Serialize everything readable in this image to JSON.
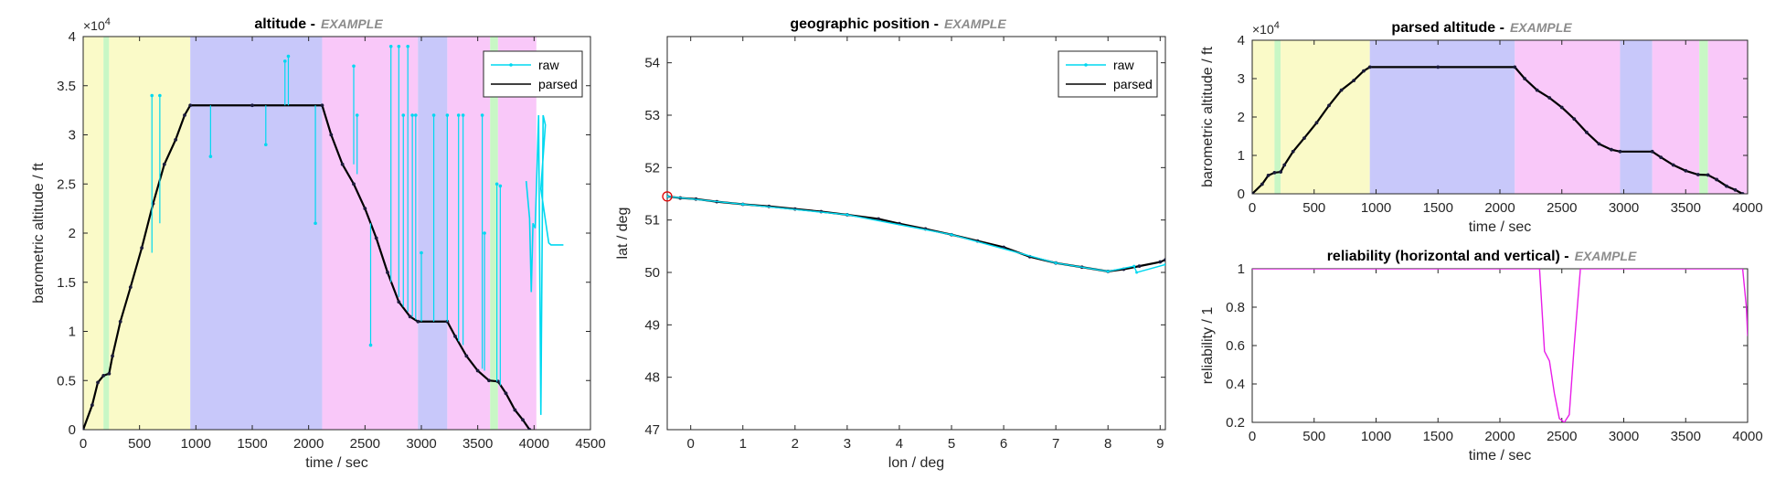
{
  "colors": {
    "raw": "#00d8f0",
    "parsed": "#000000",
    "reliability": "#e81de8",
    "axis": "#262626",
    "start_marker": "#e00000",
    "phase_green": "#c8f7c5",
    "phase_yellow": "#fafac8",
    "phase_blue": "#c8c8fa",
    "phase_magenta": "#f9c8f9"
  },
  "chart_data": [
    {
      "id": "altitude",
      "type": "line",
      "title": "altitude -",
      "title_tag": "EXAMPLE",
      "xlabel": "time / sec",
      "ylabel": "barometric altitude / ft",
      "xlim": [
        0,
        4500
      ],
      "ylim": [
        0,
        40000
      ],
      "xticks": [
        0,
        500,
        1000,
        1500,
        2000,
        2500,
        3000,
        3500,
        4000,
        4500
      ],
      "xtick_labels": [
        "0",
        "500",
        "1000",
        "1500",
        "2000",
        "2500",
        "3000",
        "3500",
        "4000",
        "4500"
      ],
      "yticks": [
        0,
        5000,
        10000,
        15000,
        20000,
        25000,
        30000,
        35000,
        40000
      ],
      "ytick_labels": [
        "0",
        "0.5",
        "1",
        "1.5",
        "2",
        "2.5",
        "3",
        "3.5",
        "4"
      ],
      "exponent_label": "×10",
      "exponent": "4",
      "legend": [
        "raw",
        "parsed"
      ],
      "legend_position": "top-right",
      "phases": [
        {
          "from": 0,
          "to": 180,
          "color": "phase_yellow"
        },
        {
          "from": 180,
          "to": 230,
          "color": "phase_green"
        },
        {
          "from": 230,
          "to": 950,
          "color": "phase_yellow"
        },
        {
          "from": 950,
          "to": 2120,
          "color": "phase_blue"
        },
        {
          "from": 2120,
          "to": 2970,
          "color": "phase_magenta"
        },
        {
          "from": 2970,
          "to": 3230,
          "color": "phase_blue"
        },
        {
          "from": 3230,
          "to": 3610,
          "color": "phase_magenta"
        },
        {
          "from": 3610,
          "to": 3680,
          "color": "phase_green"
        },
        {
          "from": 3680,
          "to": 4020,
          "color": "phase_magenta"
        }
      ],
      "series": [
        {
          "name": "parsed",
          "x": [
            0,
            80,
            130,
            180,
            230,
            260,
            330,
            420,
            520,
            620,
            720,
            820,
            900,
            950,
            1500,
            2120,
            2200,
            2300,
            2400,
            2500,
            2600,
            2700,
            2800,
            2900,
            2970,
            3230,
            3300,
            3400,
            3500,
            3600,
            3680,
            3750,
            3830,
            3900,
            3960
          ],
          "y": [
            0,
            2500,
            4800,
            5500,
            5700,
            7500,
            11000,
            14500,
            18500,
            23000,
            27000,
            29500,
            32000,
            33000,
            33000,
            33000,
            30000,
            27000,
            25000,
            22500,
            19500,
            16000,
            13000,
            11500,
            11000,
            11000,
            9500,
            7500,
            6000,
            5000,
            4900,
            3700,
            2000,
            1000,
            0
          ]
        },
        {
          "name": "raw",
          "spikes": [
            {
              "x": 610,
              "base": 18000,
              "peak": 34000
            },
            {
              "x": 680,
              "base": 21000,
              "peak": 34000
            },
            {
              "x": 1130,
              "base": 33000,
              "peak": 27800
            },
            {
              "x": 1620,
              "base": 33000,
              "peak": 29000
            },
            {
              "x": 1790,
              "base": 33000,
              "peak": 37500
            },
            {
              "x": 1820,
              "base": 33000,
              "peak": 38000
            },
            {
              "x": 2060,
              "base": 33000,
              "peak": 21000
            },
            {
              "x": 2400,
              "base": 27000,
              "peak": 37000
            },
            {
              "x": 2430,
              "base": 26000,
              "peak": 32000
            },
            {
              "x": 2550,
              "base": 21000,
              "peak": 8600
            },
            {
              "x": 2730,
              "base": 15000,
              "peak": 39000
            },
            {
              "x": 2800,
              "base": 13500,
              "peak": 39000
            },
            {
              "x": 2840,
              "base": 12500,
              "peak": 32000
            },
            {
              "x": 2880,
              "base": 12000,
              "peak": 39000
            },
            {
              "x": 2920,
              "base": 11500,
              "peak": 32000
            },
            {
              "x": 2950,
              "base": 11200,
              "peak": 32000
            },
            {
              "x": 3000,
              "base": 11000,
              "peak": 18000
            },
            {
              "x": 3110,
              "base": 11000,
              "peak": 32000
            },
            {
              "x": 3230,
              "base": 11000,
              "peak": 32000
            },
            {
              "x": 3330,
              "base": 9000,
              "peak": 32000
            },
            {
              "x": 3370,
              "base": 8600,
              "peak": 32000
            },
            {
              "x": 3540,
              "base": 6200,
              "peak": 32000
            },
            {
              "x": 3560,
              "base": 6000,
              "peak": 20000
            },
            {
              "x": 3670,
              "base": 4900,
              "peak": 25000
            },
            {
              "x": 3700,
              "base": 4500,
              "peak": 24800
            }
          ],
          "tail_x": [
            3930,
            3960,
            3975,
            3990,
            4010,
            4040,
            4060,
            4080,
            4100,
            4100,
            4060,
            4130,
            4150,
            4200,
            4260
          ],
          "tail_y": [
            25300,
            21500,
            14000,
            21000,
            20500,
            32000,
            1500,
            32000,
            31000,
            31000,
            24500,
            19000,
            18800,
            18800,
            18800
          ]
        }
      ]
    },
    {
      "id": "geographic",
      "type": "line",
      "title": "geographic position -",
      "title_tag": "EXAMPLE",
      "xlabel": "lon / deg",
      "ylabel": "lat / deg",
      "xlim": [
        -0.45,
        9.1
      ],
      "ylim": [
        47,
        54.5
      ],
      "xticks": [
        0,
        1,
        2,
        3,
        4,
        5,
        6,
        7,
        8,
        9
      ],
      "xtick_labels": [
        "0",
        "1",
        "2",
        "3",
        "4",
        "5",
        "6",
        "7",
        "8",
        "9"
      ],
      "yticks": [
        47,
        48,
        49,
        50,
        51,
        52,
        53,
        54
      ],
      "ytick_labels": [
        "47",
        "48",
        "49",
        "50",
        "51",
        "52",
        "53",
        "54"
      ],
      "legend": [
        "raw",
        "parsed"
      ],
      "legend_position": "top-right",
      "start_point": {
        "x": -0.45,
        "y": 51.45
      },
      "series": [
        {
          "name": "parsed",
          "x": [
            -0.45,
            -0.2,
            0.1,
            0.5,
            1.0,
            1.5,
            2.0,
            2.5,
            3.0,
            3.6,
            4.0,
            4.5,
            5.0,
            5.5,
            6.0,
            6.5,
            7.0,
            7.5,
            8.0,
            8.3,
            8.6,
            9.0,
            9.1
          ],
          "y": [
            51.45,
            51.42,
            51.4,
            51.35,
            51.3,
            51.26,
            51.21,
            51.16,
            51.1,
            51.02,
            50.93,
            50.83,
            50.72,
            50.6,
            50.48,
            50.3,
            50.18,
            50.1,
            50.02,
            50.06,
            50.12,
            50.2,
            50.24
          ]
        },
        {
          "name": "raw",
          "x": [
            -0.45,
            1.0,
            3.0,
            5.0,
            7.0,
            8.0,
            8.5,
            8.55,
            9.1
          ],
          "y": [
            51.45,
            51.3,
            51.1,
            50.72,
            50.18,
            50.02,
            50.12,
            50.0,
            50.15
          ]
        }
      ]
    },
    {
      "id": "parsed_altitude",
      "type": "line",
      "title": "parsed altitude -",
      "title_tag": "EXAMPLE",
      "xlabel": "time / sec",
      "ylabel": "barometric altitude / ft",
      "xlim": [
        0,
        4000
      ],
      "ylim": [
        0,
        40000
      ],
      "xticks": [
        0,
        500,
        1000,
        1500,
        2000,
        2500,
        3000,
        3500,
        4000
      ],
      "xtick_labels": [
        "0",
        "500",
        "1000",
        "1500",
        "2000",
        "2500",
        "3000",
        "3500",
        "4000"
      ],
      "yticks": [
        0,
        10000,
        20000,
        30000,
        40000
      ],
      "ytick_labels": [
        "0",
        "1",
        "2",
        "3",
        "4"
      ],
      "exponent_label": "×10",
      "exponent": "4",
      "phases": [
        {
          "from": 0,
          "to": 180,
          "color": "phase_yellow"
        },
        {
          "from": 180,
          "to": 230,
          "color": "phase_green"
        },
        {
          "from": 230,
          "to": 950,
          "color": "phase_yellow"
        },
        {
          "from": 950,
          "to": 2120,
          "color": "phase_blue"
        },
        {
          "from": 2120,
          "to": 2970,
          "color": "phase_magenta"
        },
        {
          "from": 2970,
          "to": 3230,
          "color": "phase_blue"
        },
        {
          "from": 3230,
          "to": 3610,
          "color": "phase_magenta"
        },
        {
          "from": 3610,
          "to": 3680,
          "color": "phase_green"
        },
        {
          "from": 3680,
          "to": 4000,
          "color": "phase_magenta"
        }
      ],
      "series": [
        {
          "name": "parsed",
          "x": [
            0,
            80,
            130,
            180,
            230,
            260,
            330,
            420,
            520,
            620,
            720,
            820,
            900,
            950,
            1500,
            2120,
            2200,
            2300,
            2400,
            2500,
            2600,
            2700,
            2800,
            2900,
            2970,
            3230,
            3300,
            3400,
            3500,
            3600,
            3680,
            3750,
            3830,
            3900,
            3960
          ],
          "y": [
            0,
            2500,
            4800,
            5500,
            5700,
            7500,
            11000,
            14500,
            18500,
            23000,
            27000,
            29500,
            32000,
            33000,
            33000,
            33000,
            30000,
            27000,
            25000,
            22500,
            19500,
            16000,
            13000,
            11500,
            11000,
            11000,
            9500,
            7500,
            6000,
            5000,
            4900,
            3700,
            2000,
            1000,
            0
          ]
        }
      ]
    },
    {
      "id": "reliability",
      "type": "line",
      "title": "reliability (horizontal and vertical) -",
      "title_tag": "EXAMPLE",
      "xlabel": "time / sec",
      "ylabel": "reliability / 1",
      "xlim": [
        0,
        4000
      ],
      "ylim": [
        0.2,
        1
      ],
      "xticks": [
        0,
        500,
        1000,
        1500,
        2000,
        2500,
        3000,
        3500,
        4000
      ],
      "xtick_labels": [
        "0",
        "500",
        "1000",
        "1500",
        "2000",
        "2500",
        "3000",
        "3500",
        "4000"
      ],
      "yticks": [
        0.2,
        0.4,
        0.6,
        0.8,
        1
      ],
      "ytick_labels": [
        "0.2",
        "0.4",
        "0.6",
        "0.8",
        "1"
      ],
      "series": [
        {
          "name": "reliability",
          "x": [
            0,
            2320,
            2360,
            2400,
            2440,
            2480,
            2520,
            2560,
            2600,
            2650,
            3960,
            3990,
            4000
          ],
          "y": [
            1,
            1,
            0.57,
            0.52,
            0.35,
            0.22,
            0.2,
            0.24,
            0.6,
            1,
            1,
            0.8,
            0.65
          ]
        }
      ]
    }
  ]
}
